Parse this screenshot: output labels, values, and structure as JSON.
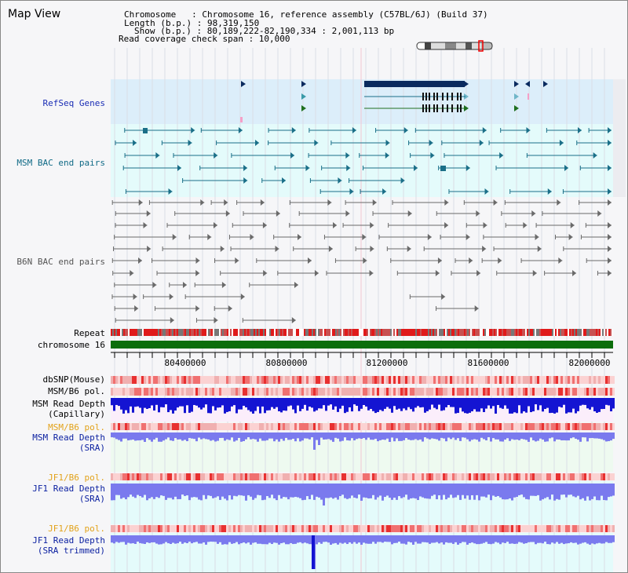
{
  "header": {
    "title": "Map View",
    "chromosome_line": "Chromosome   : Chromosome 16, reference assembly (C57BL/6J) (Build 37)",
    "length_line": "Length (b.p.) : 98,319,150",
    "show_line": "Show (b.p.) : 80,189,222-82,190,334 : 2,001,113 bp",
    "coverage_line": "Read coverage check span : 10,000"
  },
  "tracks": {
    "refseq": "RefSeq Genes",
    "msm_bac": "MSM BAC end pairs",
    "b6n_bac": "B6N BAC end pairs",
    "repeat": "Repeat",
    "chromosome": "chromosome 16",
    "dbsnp": "dbSNP(Mouse)",
    "msm_b6_pol_1": "MSM/B6 pol.",
    "msm_depth_cap_1": "MSM Read Depth",
    "msm_depth_cap_2": "(Capillary)",
    "msm_b6_pol_2": "MSM/B6 pol.",
    "msm_depth_sra_1": "MSM Read Depth",
    "msm_depth_sra_2": "(SRA)",
    "jf1_b6_pol_1": "JF1/B6 pol.",
    "jf1_depth_sra_1": "JF1 Read Depth",
    "jf1_depth_sra_2": "(SRA)",
    "jf1_b6_pol_2": "JF1/B6 pol.",
    "jf1_depth_trim_1": "JF1 Read Depth",
    "jf1_depth_trim_2": "(SRA trimmed)"
  },
  "axis": {
    "ticks": [
      "80400000",
      "80800000",
      "81200000",
      "81600000",
      "82000000"
    ]
  },
  "colors": {
    "refseq_bg": "#dceefa",
    "bac_bg": "#e4fbfb",
    "sra_bg": "#eefaf0",
    "chrom_green": "#0b6e0b",
    "depth_blue": "#1414d2",
    "depth_light": "#7a7aee",
    "gene_navy": "#0a2a5e",
    "bac_teal": "#1a6f88"
  }
}
